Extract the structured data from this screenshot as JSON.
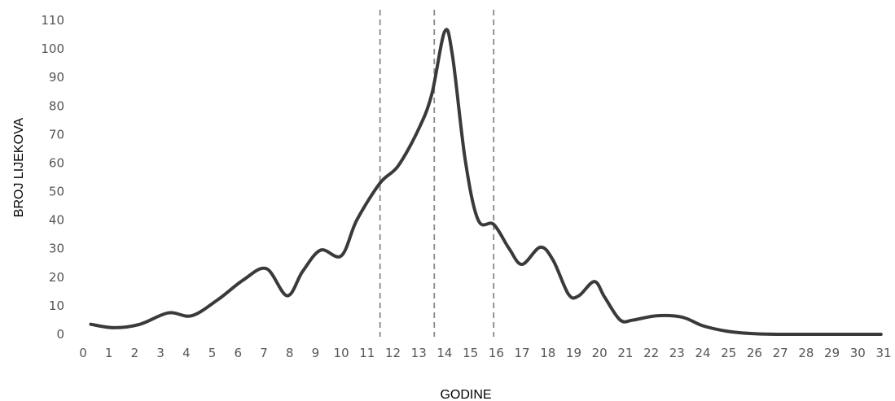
{
  "chart_data": {
    "type": "line",
    "xlabel": "GODINE",
    "ylabel": "BROJ LIJEKOVA",
    "xlim": [
      0,
      31
    ],
    "ylim": [
      0,
      110
    ],
    "x_ticks": [
      "0",
      "1",
      "2",
      "3",
      "4",
      "5",
      "6",
      "7",
      "8",
      "9",
      "10",
      "11",
      "12",
      "13",
      "14",
      "15",
      "16",
      "17",
      "18",
      "19",
      "20",
      "21",
      "22",
      "23",
      "24",
      "25",
      "26",
      "27",
      "28",
      "29",
      "30",
      "31"
    ],
    "y_ticks": [
      "0",
      "10",
      "20",
      "30",
      "40",
      "50",
      "60",
      "70",
      "80",
      "90",
      "100",
      "110"
    ],
    "grid": false,
    "reference_lines_x": [
      11.5,
      13.6,
      15.9
    ],
    "line_color": "#3a3a3a",
    "reference_line_color": "#888888",
    "series": [
      {
        "x": [
          0.3,
          1.2,
          2.2,
          3.3,
          4.2,
          5.2,
          6.2,
          7.1,
          7.9,
          8.5,
          9.2,
          10.0,
          10.6,
          11.5,
          12.2,
          13.0,
          13.5,
          14.0,
          14.3,
          14.8,
          15.3,
          15.9,
          16.5,
          17.0,
          17.7,
          18.2,
          18.8,
          19.2,
          19.8,
          20.2,
          20.8,
          21.3,
          22.2,
          23.2,
          24.0,
          25.0,
          26.0,
          27.0,
          28.0,
          29.0,
          30.0,
          30.9
        ],
        "y": [
          3.5,
          2.3,
          3.5,
          7.5,
          6.5,
          12.0,
          19.0,
          23.0,
          13.5,
          22.0,
          29.5,
          27.5,
          40.0,
          53.0,
          59.0,
          72.0,
          84.0,
          106.0,
          98.0,
          61.0,
          40.0,
          38.5,
          30.0,
          24.5,
          30.5,
          26.0,
          14.0,
          13.5,
          18.5,
          13.0,
          5.0,
          5.0,
          6.5,
          6.0,
          3.0,
          1.0,
          0.2,
          0.0,
          0.0,
          0.0,
          0.0,
          0.0
        ]
      }
    ]
  }
}
